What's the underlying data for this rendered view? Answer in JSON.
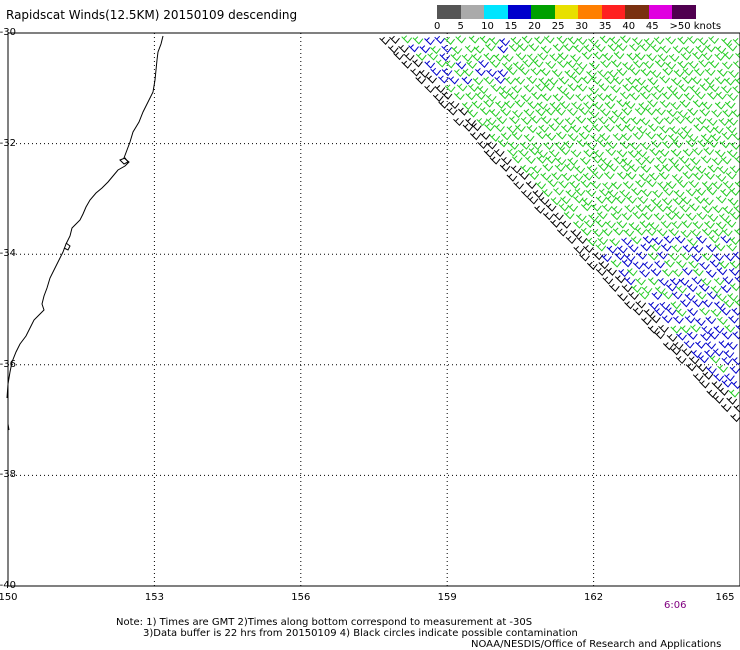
{
  "title": "Rapidscat Winds(12.5KM) 20150109 descending",
  "legend": {
    "labels": [
      "0",
      "5",
      "10",
      "15",
      "20",
      "25",
      "30",
      "35",
      "40",
      "45",
      ">50 knots"
    ],
    "colors": [
      "#555555",
      "#aaaaaa",
      "#00e5ff",
      "#0000cc",
      "#00a000",
      "#e8e000",
      "#ff7f00",
      "#ff2020",
      "#7a3010",
      "#e000e0",
      "#500050"
    ]
  },
  "map": {
    "lat_labels": [
      "-30",
      "-32",
      "-34",
      "-36",
      "-38",
      "-40"
    ],
    "lon_labels": [
      "150",
      "153",
      "156",
      "159",
      "162",
      "165"
    ],
    "lat_values": [
      -30,
      -32,
      -34,
      -36,
      -38,
      -40
    ],
    "lon_values": [
      150,
      153,
      156,
      159,
      162,
      165
    ]
  },
  "time_label": "6:06",
  "notes": {
    "line1": "Note: 1) Times are GMT 2)Times along bottom correspond to measurement at -30S",
    "line2": "3)Data buffer is 22 hrs from 20150109 4) Black circles indicate possible contamination",
    "line3": "NOAA/NESDIS/Office of Research and Applications"
  },
  "colors": {
    "barb_green": "#22cc22",
    "barb_blue": "#0000cc",
    "barb_black": "#000000"
  }
}
